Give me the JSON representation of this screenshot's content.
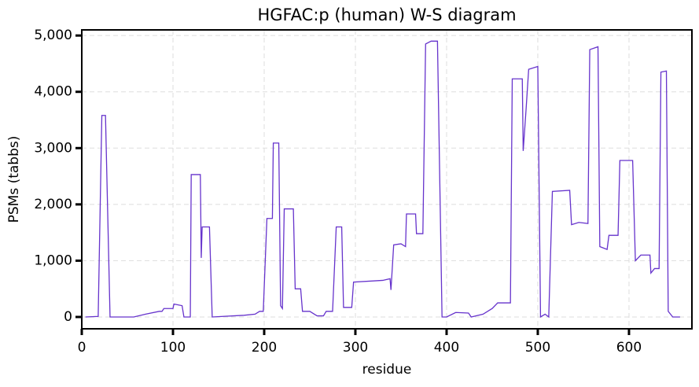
{
  "chart_data": {
    "type": "line",
    "title": "HGFAC:p (human) W-S diagram",
    "x_label": "residue",
    "y_label": "PSMs (tabbs)",
    "x": [
      4,
      18,
      22,
      26,
      31,
      57,
      70,
      85,
      88,
      90,
      100,
      101,
      110,
      112,
      119,
      120,
      130,
      131,
      132,
      140,
      143,
      178,
      190,
      195,
      199,
      203,
      209,
      210,
      216,
      218,
      220,
      222,
      232,
      234,
      240,
      242,
      250,
      258,
      265,
      268,
      275,
      279,
      285,
      287,
      296,
      298,
      330,
      338,
      339,
      342,
      350,
      355,
      356,
      366,
      367,
      374,
      377,
      383,
      390,
      395,
      400,
      410,
      424,
      427,
      440,
      450,
      456,
      470,
      472,
      483,
      484,
      487,
      490,
      500,
      503,
      508,
      512,
      516,
      535,
      537,
      545,
      555,
      557,
      566,
      568,
      576,
      578,
      588,
      590,
      604,
      607,
      613,
      623,
      624,
      628,
      633,
      635,
      641,
      643,
      648,
      656
    ],
    "series": [
      {
        "color": "#6633cc",
        "values": [
          0,
          10,
          3580,
          3580,
          0,
          0,
          50,
          100,
          100,
          150,
          150,
          230,
          200,
          0,
          0,
          2530,
          2530,
          1050,
          1600,
          1600,
          0,
          30,
          50,
          100,
          100,
          1750,
          1750,
          3090,
          3090,
          200,
          150,
          1920,
          1920,
          500,
          500,
          100,
          100,
          20,
          20,
          100,
          100,
          1600,
          1600,
          170,
          170,
          620,
          650,
          680,
          480,
          1280,
          1300,
          1250,
          1830,
          1830,
          1480,
          1480,
          4850,
          4900,
          4900,
          0,
          0,
          80,
          70,
          0,
          50,
          150,
          250,
          250,
          4230,
          4230,
          2950,
          3650,
          4400,
          4450,
          0,
          50,
          0,
          2230,
          2250,
          1640,
          1680,
          1660,
          4750,
          4800,
          1250,
          1200,
          1450,
          1450,
          2780,
          2780,
          1000,
          1100,
          1100,
          780,
          860,
          860,
          4350,
          4370,
          100,
          0,
          0
        ]
      }
    ],
    "xlim": [
      0,
      669
    ],
    "ylim": [
      -210,
      5100
    ],
    "xticks": [
      0,
      100,
      200,
      300,
      400,
      500,
      600
    ],
    "yticks": [
      0,
      {
        "value": 1000,
        "label": "1,000"
      },
      {
        "value": 2000,
        "label": "2,000"
      },
      {
        "value": 3000,
        "label": "3,000"
      },
      {
        "value": 4000,
        "label": "4,000"
      },
      {
        "value": 5000,
        "label": "5,000"
      }
    ],
    "grid": true
  }
}
